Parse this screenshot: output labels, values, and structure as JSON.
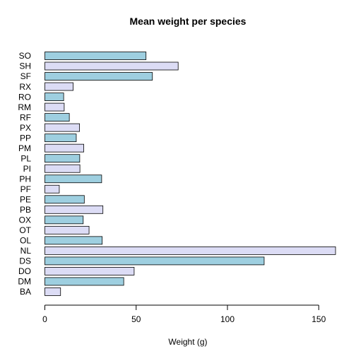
{
  "chart_data": {
    "type": "bar",
    "orientation": "horizontal",
    "title": "Mean weight per species",
    "xlabel": "Weight (g)",
    "ylabel": "",
    "xlim": [
      0,
      160
    ],
    "xticks": [
      0,
      50,
      100,
      150
    ],
    "xtick_labels": [
      "0",
      "50",
      "100",
      "150"
    ],
    "grid": false,
    "categories": [
      "SO",
      "SH",
      "SF",
      "RX",
      "RO",
      "RM",
      "RF",
      "PX",
      "PP",
      "PM",
      "PL",
      "PI",
      "PH",
      "PF",
      "PE",
      "PB",
      "OX",
      "OT",
      "OL",
      "NL",
      "DS",
      "DO",
      "DM",
      "BA"
    ],
    "values": [
      55.4,
      73.0,
      58.9,
      15.5,
      10.3,
      10.6,
      13.4,
      19.0,
      17.2,
      21.3,
      19.1,
      19.2,
      31.1,
      7.9,
      21.6,
      31.8,
      21.0,
      24.2,
      31.4,
      159.2,
      120.1,
      48.9,
      43.2,
      8.6
    ],
    "colors": [
      "#9ecfe0",
      "#dcdcf5",
      "#9ecfe0",
      "#dcdcf5",
      "#9ecfe0",
      "#dcdcf5",
      "#9ecfe0",
      "#dcdcf5",
      "#9ecfe0",
      "#dcdcf5",
      "#9ecfe0",
      "#dcdcf5",
      "#9ecfe0",
      "#dcdcf5",
      "#9ecfe0",
      "#dcdcf5",
      "#9ecfe0",
      "#dcdcf5",
      "#9ecfe0",
      "#dcdcf5",
      "#9ecfe0",
      "#dcdcf5",
      "#9ecfe0",
      "#dcdcf5"
    ]
  }
}
